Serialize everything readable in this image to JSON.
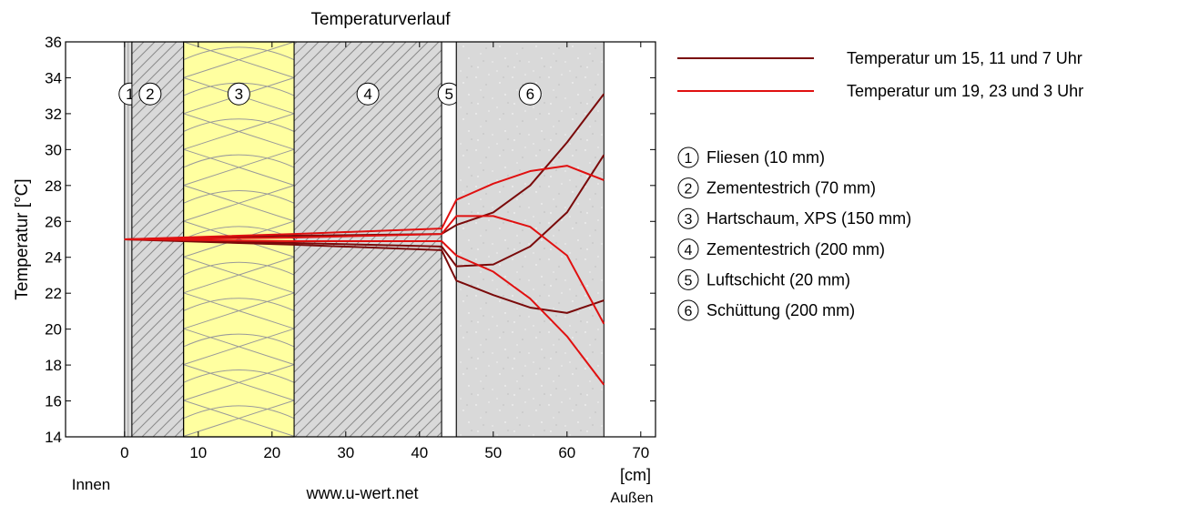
{
  "chart_data": {
    "type": "line",
    "title": "Temperaturverlauf",
    "xlabel": "[cm]",
    "ylabel": "Temperatur [°C]",
    "xlim": [
      -8,
      72
    ],
    "ylim": [
      14,
      36
    ],
    "xticks": [
      0,
      10,
      20,
      30,
      40,
      50,
      60,
      70
    ],
    "yticks": [
      14,
      16,
      18,
      20,
      22,
      24,
      26,
      28,
      30,
      32,
      34,
      36
    ],
    "grid": false,
    "legend_position": "right",
    "inside_label": "Innen",
    "outside_label": "Außen",
    "website": "www.u-wert.net",
    "layers": [
      {
        "id": 1,
        "name": "Fliesen (10 mm)",
        "x_start": 0,
        "x_end": 1,
        "pattern": "tile",
        "color": "#dcdcdc"
      },
      {
        "id": 2,
        "name": "Zementestrich (70 mm)",
        "x_start": 1,
        "x_end": 8,
        "pattern": "hatch",
        "color": "#d8d8d8"
      },
      {
        "id": 3,
        "name": "Hartschaum, XPS (150 mm)",
        "x_start": 8,
        "x_end": 23,
        "pattern": "insulation",
        "color": "#ffffa0"
      },
      {
        "id": 4,
        "name": "Zementestrich (200 mm)",
        "x_start": 23,
        "x_end": 43,
        "pattern": "hatch",
        "color": "#d8d8d8"
      },
      {
        "id": 5,
        "name": "Luftschicht (20 mm)",
        "x_start": 43,
        "x_end": 45,
        "pattern": "air",
        "color": "#ffffff"
      },
      {
        "id": 6,
        "name": "Schüttung (200 mm)",
        "x_start": 45,
        "x_end": 65,
        "pattern": "fill",
        "color": "#d9d9d9"
      }
    ],
    "series_groups": [
      {
        "name": "Temperatur um 15, 11 und 7 Uhr",
        "color": "#7a0a0a",
        "lines": [
          {
            "x": [
              0,
              23,
              43,
              45,
              50,
              55,
              60,
              65
            ],
            "y": [
              25.0,
              25.2,
              25.3,
              25.8,
              26.5,
              28.0,
              30.4,
              33.1
            ]
          },
          {
            "x": [
              0,
              23,
              43,
              45,
              50,
              55,
              60,
              65
            ],
            "y": [
              25.0,
              24.8,
              24.6,
              23.5,
              23.6,
              24.6,
              26.5,
              29.7
            ]
          },
          {
            "x": [
              0,
              23,
              43,
              45,
              50,
              55,
              60,
              65
            ],
            "y": [
              25.0,
              24.7,
              24.4,
              22.7,
              21.9,
              21.2,
              20.9,
              21.6
            ]
          }
        ]
      },
      {
        "name": "Temperatur um 19, 23 und 3 Uhr",
        "color": "#e01010",
        "lines": [
          {
            "x": [
              0,
              23,
              43,
              45,
              50,
              55,
              60,
              65
            ],
            "y": [
              25.0,
              25.3,
              25.6,
              27.2,
              28.1,
              28.8,
              29.1,
              28.3
            ]
          },
          {
            "x": [
              0,
              23,
              43,
              45,
              50,
              55,
              60,
              65
            ],
            "y": [
              25.0,
              25.1,
              25.3,
              26.3,
              26.3,
              25.7,
              24.1,
              20.3
            ]
          },
          {
            "x": [
              0,
              23,
              43,
              45,
              50,
              55,
              60,
              65
            ],
            "y": [
              25.0,
              24.9,
              24.9,
              24.1,
              23.2,
              21.7,
              19.6,
              16.9
            ]
          }
        ]
      }
    ]
  }
}
